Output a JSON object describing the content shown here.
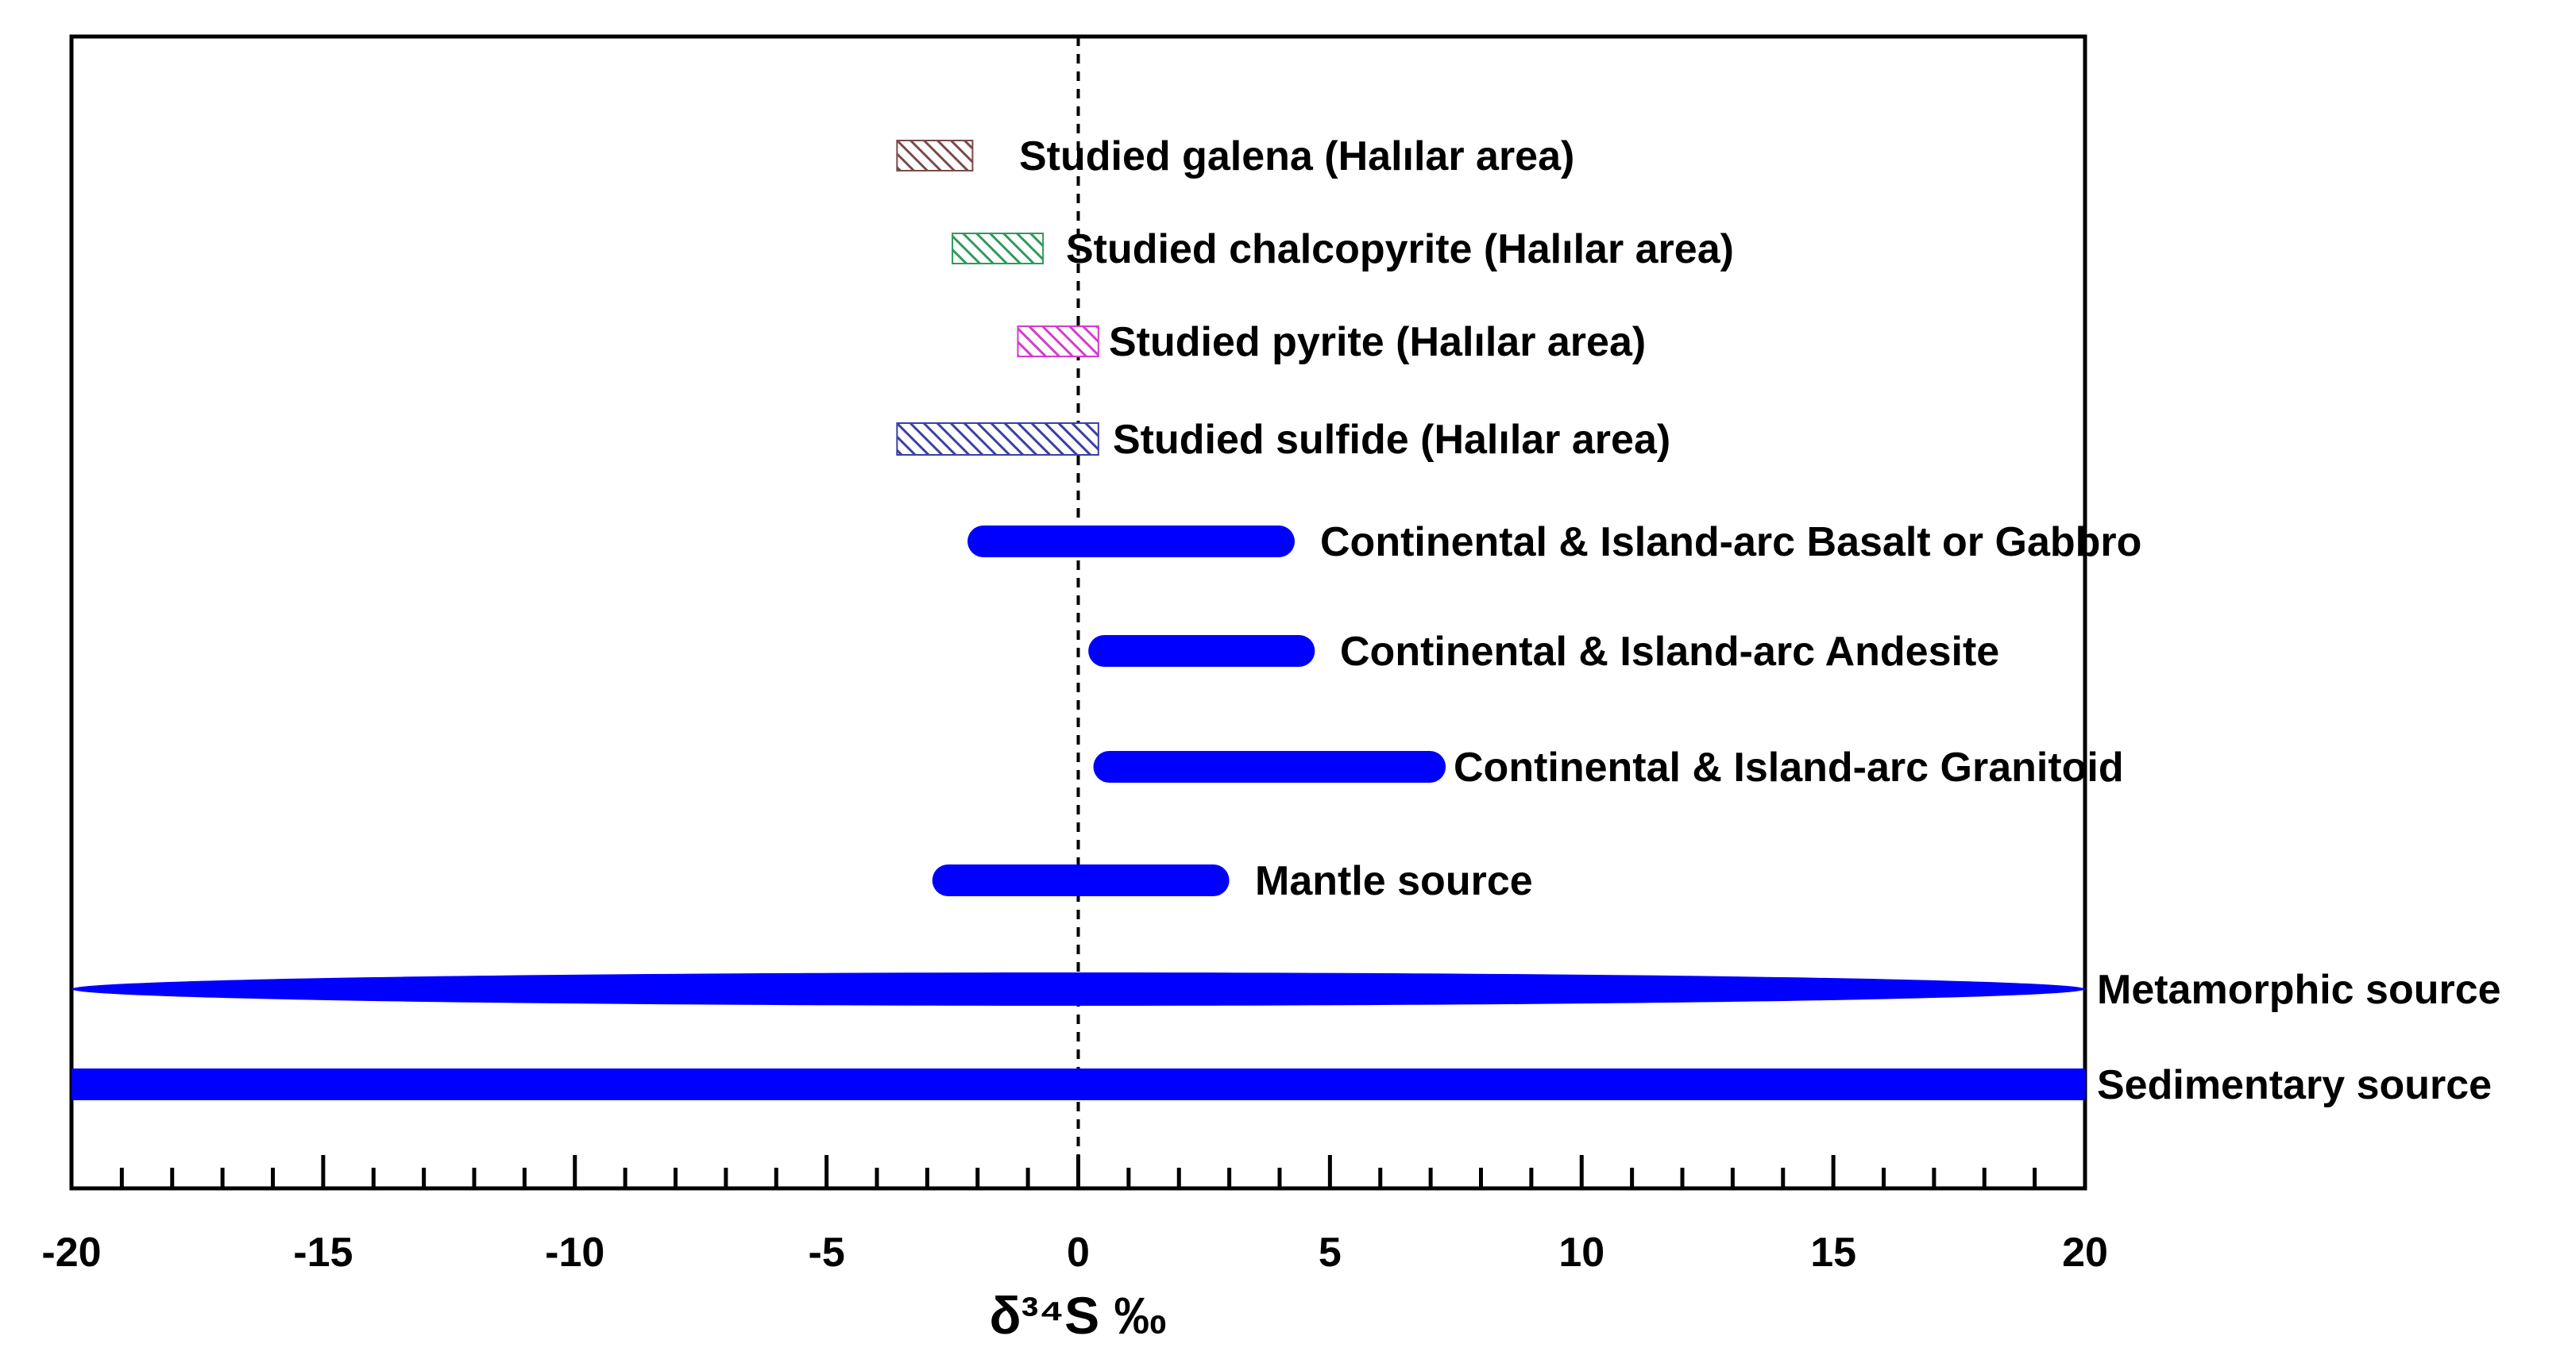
{
  "chart_data": {
    "type": "range-bar",
    "xlabel": "δ³⁴S ‰",
    "xlim": [
      -20,
      20
    ],
    "major_ticks": [
      -20,
      -15,
      -10,
      -5,
      0,
      5,
      10,
      15,
      20
    ],
    "tick_labels": [
      "-20",
      "-15",
      "-10",
      "-5",
      "0",
      "5",
      "10",
      "15",
      "20"
    ],
    "minor_tick_step": 1,
    "reference_line_x": 0,
    "ranges": [
      {
        "name": "Studied galena (Halılar area)",
        "min": -3.6,
        "max": -2.1,
        "style": "hatch",
        "color": "#7b4a4a",
        "shape": "rect"
      },
      {
        "name": "Studied chalcopyrite (Halılar area)",
        "min": -2.5,
        "max": -0.7,
        "style": "hatch",
        "color": "#2e9a5c",
        "shape": "rect"
      },
      {
        "name": "Studied pyrite (Halılar area)",
        "min": -1.2,
        "max": 0.4,
        "style": "hatch",
        "color": "#d63ad0",
        "shape": "rect"
      },
      {
        "name": "Studied sulfide (Halılar area)",
        "min": -3.6,
        "max": 0.4,
        "style": "hatch",
        "color": "#3b3fa6",
        "shape": "rect"
      },
      {
        "name": "Continental & Island-arc Basalt or Gabbro",
        "min": -2.2,
        "max": 4.3,
        "style": "solid",
        "color": "#0000ff",
        "shape": "pill"
      },
      {
        "name": "Continental & Island-arc Andesite",
        "min": 0.2,
        "max": 4.7,
        "style": "solid",
        "color": "#0000ff",
        "shape": "pill"
      },
      {
        "name": "Continental & Island-arc Granitoid",
        "min": 0.3,
        "max": 7.3,
        "style": "solid",
        "color": "#0000ff",
        "shape": "pill"
      },
      {
        "name": "Mantle source",
        "min": -2.9,
        "max": 3.0,
        "style": "solid",
        "color": "#0000ff",
        "shape": "pill"
      },
      {
        "name": "Metamorphic source",
        "min": -20,
        "max": 20,
        "style": "solid",
        "color": "#0000ff",
        "shape": "ellipse"
      },
      {
        "name": "Sedimentary source",
        "min": -20,
        "max": 20,
        "style": "solid",
        "color": "#0000ff",
        "shape": "rect"
      }
    ]
  }
}
